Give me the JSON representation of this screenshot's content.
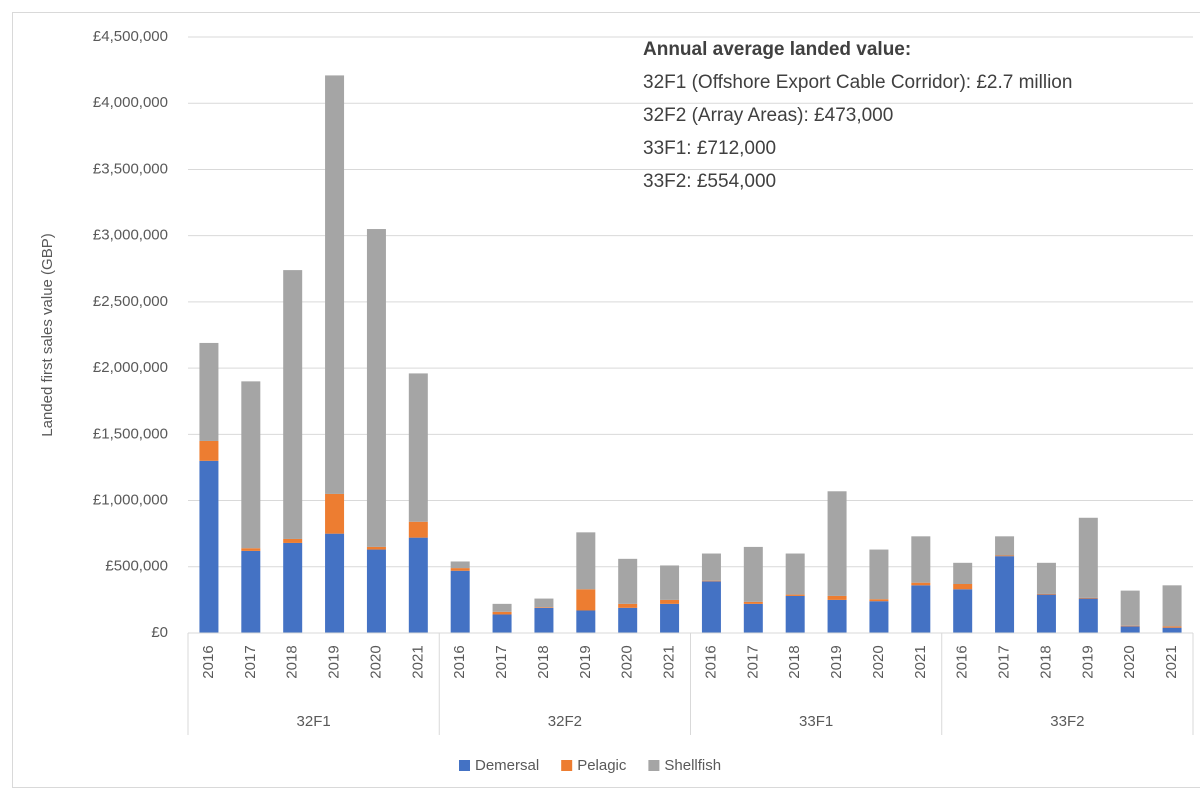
{
  "chart_data": {
    "type": "stacked_bar",
    "y_label": "Landed first sales value (GBP)",
    "annotation": {
      "title": "Annual average landed value:",
      "lines": [
        "32F1 (Offshore Export Cable Corridor): £2.7 million",
        "32F2 (Array Areas): £473,000",
        "33F1: £712,000",
        "33F2: £554,000"
      ]
    },
    "groups": [
      "32F1",
      "32F2",
      "33F1",
      "33F2"
    ],
    "categories": [
      "2016",
      "2017",
      "2018",
      "2019",
      "2020",
      "2021",
      "2016",
      "2017",
      "2018",
      "2019",
      "2020",
      "2021",
      "2016",
      "2017",
      "2018",
      "2019",
      "2020",
      "2021",
      "2016",
      "2017",
      "2018",
      "2019",
      "2020",
      "2021"
    ],
    "series": [
      {
        "name": "Demersal",
        "color": "#4472c4",
        "values": [
          1300000,
          620000,
          680000,
          750000,
          630000,
          720000,
          470000,
          140000,
          190000,
          170000,
          190000,
          220000,
          390000,
          220000,
          280000,
          250000,
          240000,
          360000,
          330000,
          580000,
          290000,
          260000,
          50000,
          40000
        ]
      },
      {
        "name": "Pelagic",
        "color": "#ed7d31",
        "values": [
          150000,
          20000,
          30000,
          300000,
          20000,
          120000,
          20000,
          20000,
          5000,
          160000,
          30000,
          30000,
          5000,
          15000,
          10000,
          30000,
          15000,
          20000,
          40000,
          5000,
          5000,
          5000,
          5000,
          10000
        ]
      },
      {
        "name": "Shellfish",
        "color": "#a5a5a5",
        "values": [
          740000,
          1260000,
          2030000,
          3160000,
          2400000,
          1120000,
          50000,
          60000,
          65000,
          430000,
          340000,
          260000,
          205000,
          415000,
          310000,
          790000,
          375000,
          350000,
          160000,
          145000,
          235000,
          605000,
          265000,
          310000
        ]
      }
    ],
    "ylim": [
      0,
      4500000
    ],
    "yticks": [
      {
        "value": 0,
        "label": "£0"
      },
      {
        "value": 500000,
        "label": "£500,000"
      },
      {
        "value": 1000000,
        "label": "£1,000,000"
      },
      {
        "value": 1500000,
        "label": "£1,500,000"
      },
      {
        "value": 2000000,
        "label": "£2,000,000"
      },
      {
        "value": 2500000,
        "label": "£2,500,000"
      },
      {
        "value": 3000000,
        "label": "£3,000,000"
      },
      {
        "value": 3500000,
        "label": "£3,500,000"
      },
      {
        "value": 4000000,
        "label": "£4,000,000"
      },
      {
        "value": 4500000,
        "label": "£4,500,000"
      }
    ],
    "grid": true,
    "legend": "bottom"
  }
}
